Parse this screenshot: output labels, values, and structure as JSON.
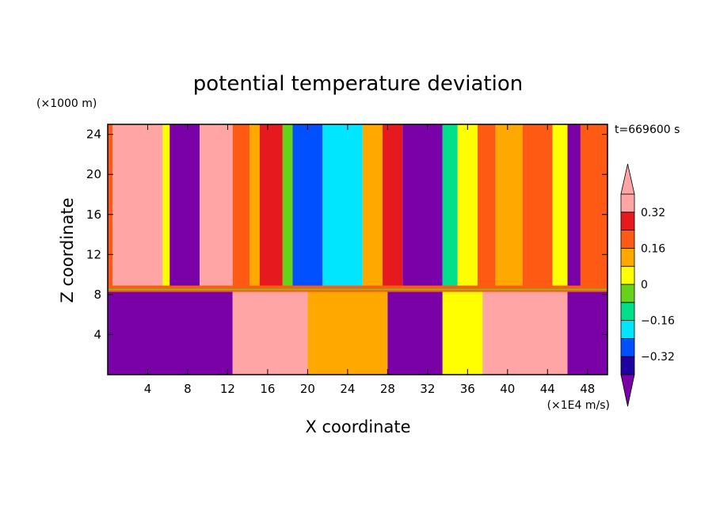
{
  "chart_data": {
    "type": "heatmap",
    "title": "potential temperature deviation",
    "xlabel": "X coordinate",
    "ylabel": "Z coordinate",
    "x_unit": "(×1E4 m/s)",
    "y_unit": "(×1000 m)",
    "time_label": "t=669600 s",
    "xlim": [
      0,
      50
    ],
    "ylim": [
      0,
      25
    ],
    "x_ticks": [
      "4",
      "8",
      "12",
      "16",
      "20",
      "24",
      "28",
      "32",
      "36",
      "40",
      "44",
      "48"
    ],
    "y_ticks": [
      "4",
      "8",
      "12",
      "16",
      "20",
      "24"
    ],
    "colorbar": {
      "tick_labels": [
        "0.32",
        "0.16",
        "0",
        "−0.16",
        "−0.32"
      ],
      "tick_values": [
        0.32,
        0.16,
        0,
        -0.16,
        -0.32
      ],
      "levels": [
        -0.4,
        -0.32,
        -0.24,
        -0.16,
        -0.08,
        0,
        0.08,
        0.16,
        0.24,
        0.32,
        0.4
      ],
      "colors": [
        "#7a00a8",
        "#1f00a0",
        "#0050ff",
        "#00e6ff",
        "#00e08a",
        "#66d21a",
        "#ffff00",
        "#ffa800",
        "#ff5a14",
        "#e6191e",
        "#ffa5a5"
      ],
      "extend": "both"
    },
    "upper_layer_columns": [
      {
        "x_start": 0,
        "x_end": 0.5,
        "value": 0.3
      },
      {
        "x_start": 0.5,
        "x_end": 5.5,
        "value": 0.45
      },
      {
        "x_start": 5.5,
        "x_end": 6.2,
        "value": 0.1
      },
      {
        "x_start": 6.2,
        "x_end": 9.2,
        "value": -0.45
      },
      {
        "x_start": 9.2,
        "x_end": 12.5,
        "value": 0.45
      },
      {
        "x_start": 12.5,
        "x_end": 14.2,
        "value": 0.3
      },
      {
        "x_start": 14.2,
        "x_end": 15.2,
        "value": 0.2
      },
      {
        "x_start": 15.2,
        "x_end": 17.5,
        "value": 0.35
      },
      {
        "x_start": 17.5,
        "x_end": 18.5,
        "value": 0.05
      },
      {
        "x_start": 18.5,
        "x_end": 21.5,
        "value": -0.2
      },
      {
        "x_start": 21.5,
        "x_end": 25.5,
        "value": -0.12
      },
      {
        "x_start": 25.5,
        "x_end": 27.5,
        "value": 0.2
      },
      {
        "x_start": 27.5,
        "x_end": 29.5,
        "value": 0.35
      },
      {
        "x_start": 29.5,
        "x_end": 33.5,
        "value": -0.45
      },
      {
        "x_start": 33.5,
        "x_end": 35.0,
        "value": -0.05
      },
      {
        "x_start": 35.0,
        "x_end": 37.0,
        "value": 0.15
      },
      {
        "x_start": 37.0,
        "x_end": 38.8,
        "value": 0.3
      },
      {
        "x_start": 38.8,
        "x_end": 41.5,
        "value": 0.2
      },
      {
        "x_start": 41.5,
        "x_end": 44.5,
        "value": 0.3
      },
      {
        "x_start": 44.5,
        "x_end": 46.0,
        "value": 0.1
      },
      {
        "x_start": 46.0,
        "x_end": 47.3,
        "value": -0.35
      },
      {
        "x_start": 47.3,
        "x_end": 50.0,
        "value": 0.3
      }
    ],
    "lower_layer_regions": [
      {
        "x_start": 0,
        "x_end": 12.5,
        "value": -0.45
      },
      {
        "x_start": 12.5,
        "x_end": 20.0,
        "value": 0.45
      },
      {
        "x_start": 20.0,
        "x_end": 28.0,
        "value": 0.2
      },
      {
        "x_start": 28.0,
        "x_end": 33.5,
        "value": -0.45
      },
      {
        "x_start": 33.5,
        "x_end": 37.5,
        "value": 0.1
      },
      {
        "x_start": 37.5,
        "x_end": 46.0,
        "value": 0.45
      },
      {
        "x_start": 46.0,
        "x_end": 50.0,
        "value": -0.45
      }
    ],
    "layer_interface_z": 8.5
  }
}
